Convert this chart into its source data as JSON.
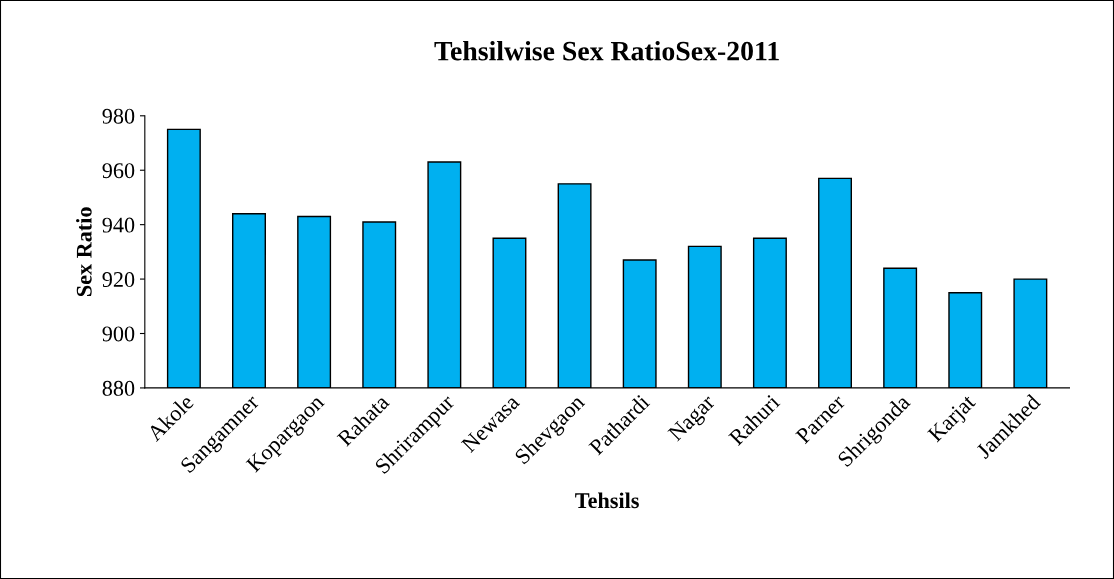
{
  "chart_data": {
    "type": "bar",
    "title": "Tehsilwise Sex RatioSex-2011",
    "xlabel": "Tehsils",
    "ylabel": "Sex Ratio",
    "categories": [
      "Akole",
      "Sangamner",
      "Kopargaon",
      "Rahata",
      "Shrirampur",
      "Newasa",
      "Shevgaon",
      "Pathardi",
      "Nagar",
      "Rahuri",
      "Parner",
      "Shrigonda",
      "Karjat",
      "Jamkhed"
    ],
    "values": [
      975,
      944,
      943,
      941,
      963,
      935,
      955,
      927,
      932,
      935,
      957,
      924,
      915,
      920
    ],
    "color": "#00b0f0",
    "ylim": [
      880,
      980
    ],
    "yticks": [
      880,
      900,
      920,
      940,
      960,
      980
    ],
    "grid": false
  }
}
